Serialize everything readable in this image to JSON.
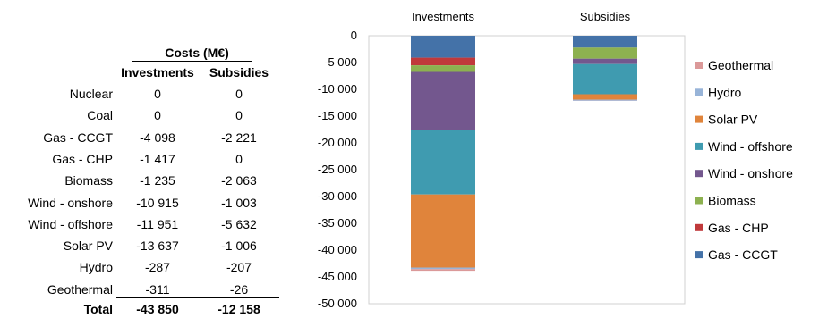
{
  "table": {
    "title": "Costs (M€)",
    "headers": [
      "Investments",
      "Subsidies"
    ],
    "rows": [
      {
        "label": "Nuclear",
        "inv": "0",
        "sub": "0"
      },
      {
        "label": "Coal",
        "inv": "0",
        "sub": "0"
      },
      {
        "label": "Gas - CCGT",
        "inv": "-4 098",
        "sub": "-2 221"
      },
      {
        "label": "Gas - CHP",
        "inv": "-1 417",
        "sub": "0"
      },
      {
        "label": "Biomass",
        "inv": "-1 235",
        "sub": "-2 063"
      },
      {
        "label": "Wind - onshore",
        "inv": "-10 915",
        "sub": "-1 003"
      },
      {
        "label": "Wind - offshore",
        "inv": "-11 951",
        "sub": "-5 632"
      },
      {
        "label": "Solar PV",
        "inv": "-13 637",
        "sub": "-1 006"
      },
      {
        "label": "Hydro",
        "inv": "-287",
        "sub": "-207"
      },
      {
        "label": "Geothermal",
        "inv": "-311",
        "sub": "-26"
      }
    ],
    "total": {
      "label": "Total",
      "inv": "-43 850",
      "sub": "-12 158"
    }
  },
  "chart_data": {
    "type": "bar",
    "stacked": true,
    "categories": [
      "Investments",
      "Subsidies"
    ],
    "ylim": [
      -50000,
      0
    ],
    "yticks": [
      0,
      -5000,
      -10000,
      -15000,
      -20000,
      -25000,
      -30000,
      -35000,
      -40000,
      -45000,
      -50000
    ],
    "ytick_labels": [
      "0",
      "-5 000",
      "-10 000",
      "-15 000",
      "-20 000",
      "-25 000",
      "-30 000",
      "-35 000",
      "-40 000",
      "-45 000",
      "-50 000"
    ],
    "legend_position": "right",
    "series": [
      {
        "name": "Gas - CCGT",
        "color": "#4472A8",
        "values": [
          -4098,
          -2221
        ]
      },
      {
        "name": "Gas - CHP",
        "color": "#C0393B",
        "values": [
          -1417,
          0
        ]
      },
      {
        "name": "Biomass",
        "color": "#8DB150",
        "values": [
          -1235,
          -2063
        ]
      },
      {
        "name": "Wind - onshore",
        "color": "#73578E",
        "values": [
          -10915,
          -1003
        ]
      },
      {
        "name": "Wind - offshore",
        "color": "#3F9BB0",
        "values": [
          -11951,
          -5632
        ]
      },
      {
        "name": "Solar PV",
        "color": "#E0843B",
        "values": [
          -13637,
          -1006
        ]
      },
      {
        "name": "Hydro",
        "color": "#98B4D8",
        "values": [
          -287,
          -207
        ]
      },
      {
        "name": "Geothermal",
        "color": "#DB9999",
        "values": [
          -311,
          -26
        ]
      }
    ],
    "legend_order": [
      "Geothermal",
      "Hydro",
      "Solar PV",
      "Wind - offshore",
      "Wind - onshore",
      "Biomass",
      "Gas - CHP",
      "Gas - CCGT"
    ]
  }
}
